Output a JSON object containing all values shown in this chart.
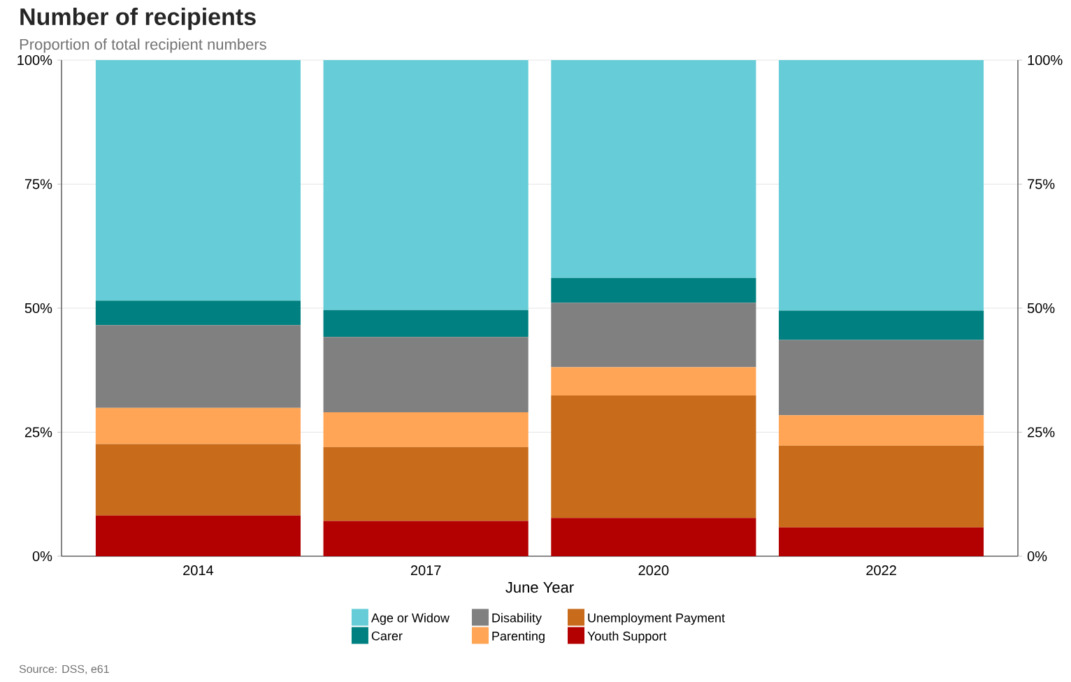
{
  "chart_data": {
    "type": "bar",
    "stacked": true,
    "title": "Number of recipients",
    "subtitle": "Proportion of total recipient numbers",
    "xlabel": "June Year",
    "categories": [
      "2014",
      "2017",
      "2020",
      "2022"
    ],
    "series": [
      {
        "name": "Youth Support",
        "color": "#b30000",
        "values": [
          8.2,
          7.1,
          7.7,
          5.8
        ]
      },
      {
        "name": "Unemployment Payment",
        "color": "#c86b1a",
        "values": [
          14.4,
          14.9,
          24.7,
          16.5
        ]
      },
      {
        "name": "Parenting",
        "color": "#ffa555",
        "values": [
          7.3,
          7.0,
          5.7,
          6.1
        ]
      },
      {
        "name": "Disability",
        "color": "#808080",
        "values": [
          16.7,
          15.2,
          13.0,
          15.2
        ]
      },
      {
        "name": "Carer",
        "color": "#008080",
        "values": [
          4.9,
          5.4,
          5.0,
          5.9
        ]
      },
      {
        "name": "Age or Widow",
        "color": "#66cdd8",
        "values": [
          48.5,
          50.4,
          43.9,
          50.5
        ]
      }
    ],
    "ylim": [
      0,
      100
    ],
    "yticks": [
      {
        "value": 0,
        "label": "0%"
      },
      {
        "value": 25,
        "label": "25%"
      },
      {
        "value": 50,
        "label": "50%"
      },
      {
        "value": 75,
        "label": "75%"
      },
      {
        "value": 100,
        "label": "100%"
      }
    ],
    "y2lim": [
      0,
      100
    ],
    "y2ticks": [
      {
        "value": 0,
        "label": "0%"
      },
      {
        "value": 25,
        "label": "25%"
      },
      {
        "value": 50,
        "label": "50%"
      },
      {
        "value": 75,
        "label": "75%"
      },
      {
        "value": 100,
        "label": "100%"
      }
    ],
    "grid": "y",
    "legend": "bottom",
    "annotations": [
      "Source: DSS, e61"
    ]
  }
}
